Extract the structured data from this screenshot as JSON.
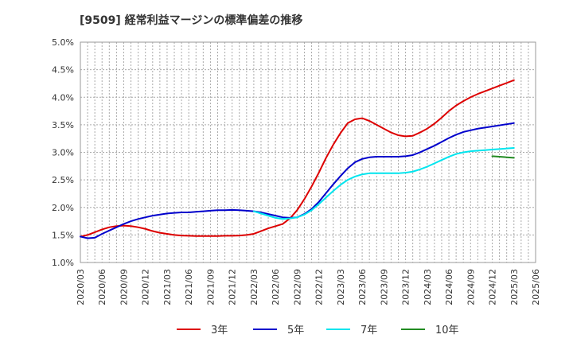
{
  "chart_data": {
    "type": "line",
    "title": "[9509]  経常利益マージンの標準偏差の推移",
    "y_ticks": [
      "5.0%",
      "4.5%",
      "4.0%",
      "3.5%",
      "3.0%",
      "2.5%",
      "2.0%",
      "1.5%",
      "1.0%"
    ],
    "x_ticks": [
      "2020/03",
      "2020/06",
      "2020/09",
      "2020/12",
      "2021/03",
      "2021/06",
      "2021/09",
      "2021/12",
      "2022/03",
      "2022/06",
      "2022/09",
      "2022/12",
      "2023/03",
      "2023/06",
      "2023/09",
      "2023/12",
      "2024/03",
      "2024/06",
      "2024/09",
      "2024/12",
      "2025/03",
      "2025/06"
    ],
    "ylim": [
      1.0,
      5.0
    ],
    "grid": true,
    "legend_position": "bottom",
    "series": [
      {
        "name": "3年",
        "color": "#dd0000",
        "x": [
          "2020/03",
          "2020/04",
          "2020/05",
          "2020/06",
          "2020/07",
          "2020/08",
          "2020/09",
          "2020/10",
          "2020/11",
          "2020/12",
          "2021/01",
          "2021/02",
          "2021/03",
          "2021/04",
          "2021/05",
          "2021/06",
          "2021/07",
          "2021/08",
          "2021/09",
          "2021/10",
          "2021/11",
          "2021/12",
          "2022/01",
          "2022/02",
          "2022/03",
          "2022/04",
          "2022/05",
          "2022/06",
          "2022/07",
          "2022/08",
          "2022/09",
          "2022/10",
          "2022/11",
          "2022/12",
          "2023/01",
          "2023/02",
          "2023/03",
          "2023/04",
          "2023/05",
          "2023/06",
          "2023/07",
          "2023/08",
          "2023/09",
          "2023/10",
          "2023/11",
          "2023/12",
          "2024/01",
          "2024/02",
          "2024/03",
          "2024/04",
          "2024/05",
          "2024/06",
          "2024/07",
          "2024/08",
          "2024/09",
          "2024/10",
          "2024/11",
          "2024/12",
          "2025/01",
          "2025/02",
          "2025/03"
        ],
        "values": [
          1.47,
          1.5,
          1.55,
          1.6,
          1.64,
          1.66,
          1.67,
          1.66,
          1.64,
          1.61,
          1.57,
          1.54,
          1.52,
          1.5,
          1.49,
          1.485,
          1.48,
          1.48,
          1.48,
          1.48,
          1.485,
          1.485,
          1.49,
          1.5,
          1.52,
          1.57,
          1.62,
          1.66,
          1.7,
          1.8,
          1.95,
          2.15,
          2.38,
          2.63,
          2.9,
          3.14,
          3.35,
          3.53,
          3.6,
          3.62,
          3.57,
          3.5,
          3.43,
          3.36,
          3.31,
          3.29,
          3.3,
          3.36,
          3.43,
          3.52,
          3.63,
          3.75,
          3.85,
          3.93,
          4.0,
          4.06,
          4.11,
          4.16,
          4.21,
          4.26,
          4.31
        ]
      },
      {
        "name": "5年",
        "color": "#0000cc",
        "x": [
          "2020/03",
          "2020/04",
          "2020/05",
          "2020/06",
          "2020/07",
          "2020/08",
          "2020/09",
          "2020/10",
          "2020/11",
          "2020/12",
          "2021/01",
          "2021/02",
          "2021/03",
          "2021/04",
          "2021/05",
          "2021/06",
          "2021/07",
          "2021/08",
          "2021/09",
          "2021/10",
          "2021/11",
          "2021/12",
          "2022/01",
          "2022/02",
          "2022/03",
          "2022/04",
          "2022/05",
          "2022/06",
          "2022/07",
          "2022/08",
          "2022/09",
          "2022/10",
          "2022/11",
          "2022/12",
          "2023/01",
          "2023/02",
          "2023/03",
          "2023/04",
          "2023/05",
          "2023/06",
          "2023/07",
          "2023/08",
          "2023/09",
          "2023/10",
          "2023/11",
          "2023/12",
          "2024/01",
          "2024/02",
          "2024/03",
          "2024/04",
          "2024/05",
          "2024/06",
          "2024/07",
          "2024/08",
          "2024/09",
          "2024/10",
          "2024/11",
          "2024/12",
          "2025/01",
          "2025/02",
          "2025/03"
        ],
        "values": [
          1.47,
          1.44,
          1.45,
          1.52,
          1.58,
          1.64,
          1.7,
          1.75,
          1.79,
          1.82,
          1.85,
          1.87,
          1.89,
          1.9,
          1.91,
          1.91,
          1.92,
          1.93,
          1.94,
          1.95,
          1.95,
          1.955,
          1.95,
          1.94,
          1.93,
          1.91,
          1.88,
          1.85,
          1.82,
          1.81,
          1.82,
          1.88,
          1.97,
          2.1,
          2.26,
          2.42,
          2.57,
          2.71,
          2.82,
          2.88,
          2.91,
          2.92,
          2.92,
          2.92,
          2.92,
          2.93,
          2.95,
          3.0,
          3.06,
          3.12,
          3.19,
          3.26,
          3.32,
          3.37,
          3.4,
          3.43,
          3.45,
          3.47,
          3.49,
          3.51,
          3.53
        ]
      },
      {
        "name": "7年",
        "color": "#00e5ee",
        "x": [
          "2022/03",
          "2022/04",
          "2022/05",
          "2022/06",
          "2022/07",
          "2022/08",
          "2022/09",
          "2022/10",
          "2022/11",
          "2022/12",
          "2023/01",
          "2023/02",
          "2023/03",
          "2023/04",
          "2023/05",
          "2023/06",
          "2023/07",
          "2023/08",
          "2023/09",
          "2023/10",
          "2023/11",
          "2023/12",
          "2024/01",
          "2024/02",
          "2024/03",
          "2024/04",
          "2024/05",
          "2024/06",
          "2024/07",
          "2024/08",
          "2024/09",
          "2024/10",
          "2024/11",
          "2024/12",
          "2025/01",
          "2025/02",
          "2025/03"
        ],
        "values": [
          1.93,
          1.89,
          1.85,
          1.81,
          1.79,
          1.8,
          1.82,
          1.87,
          1.95,
          2.06,
          2.18,
          2.3,
          2.41,
          2.5,
          2.56,
          2.6,
          2.62,
          2.62,
          2.62,
          2.62,
          2.62,
          2.63,
          2.65,
          2.69,
          2.74,
          2.8,
          2.86,
          2.92,
          2.97,
          3.0,
          3.02,
          3.03,
          3.04,
          3.05,
          3.06,
          3.07,
          3.08
        ]
      },
      {
        "name": "10年",
        "color": "#228b22",
        "x": [
          "2024/12",
          "2025/01",
          "2025/02",
          "2025/03"
        ],
        "values": [
          2.93,
          2.92,
          2.91,
          2.9
        ]
      }
    ]
  }
}
